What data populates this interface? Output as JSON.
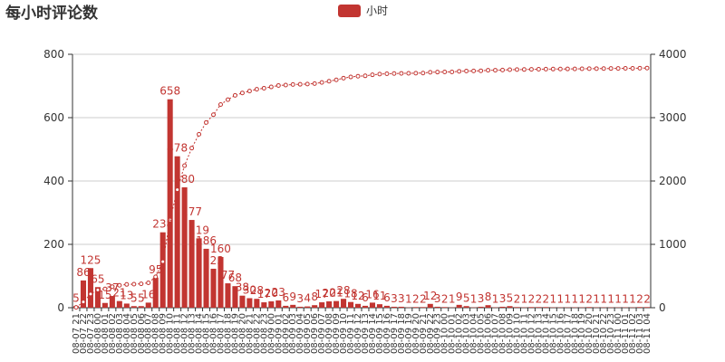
{
  "chart_data": {
    "type": "bar",
    "title": "每小时评论数",
    "legend": {
      "placement": "top-center",
      "entries": [
        "小时"
      ]
    },
    "colors": {
      "bar": "#c23531",
      "line": "#c23531",
      "axis": "#333333",
      "grid": "#cccccc"
    },
    "categories": [
      "08-07 21",
      "08-07 22",
      "08-07 23",
      "08-08 00",
      "08-08 01",
      "08-08 02",
      "08-08 03",
      "08-08 04",
      "08-08 05",
      "08-08 06",
      "08-08 07",
      "08-08 08",
      "08-08 09",
      "08-08 10",
      "08-08 11",
      "08-08 12",
      "08-08 13",
      "08-08 14",
      "08-08 15",
      "08-08 16",
      "08-08 17",
      "08-08 18",
      "08-08 19",
      "08-08 20",
      "08-08 21",
      "08-08 22",
      "08-08 23",
      "08-09 00",
      "08-09 01",
      "08-09 02",
      "08-09 03",
      "08-09 04",
      "08-09 05",
      "08-09 06",
      "08-09 07",
      "08-09 08",
      "08-09 09",
      "08-09 10",
      "08-09 11",
      "08-09 12",
      "08-09 13",
      "08-09 14",
      "08-09 15",
      "08-09 16",
      "08-09 17",
      "08-09 18",
      "08-09 19",
      "08-09 20",
      "08-09 21",
      "08-09 22",
      "08-09 23",
      "08-10 00",
      "08-10 01",
      "08-10 02",
      "08-10 03",
      "08-10 04",
      "08-10 05",
      "08-10 06",
      "08-10 07",
      "08-10 08",
      "08-10 09",
      "08-10 10",
      "08-10 11",
      "08-10 12",
      "08-10 13",
      "08-10 14",
      "08-10 15",
      "08-10 16",
      "08-10 17",
      "08-10 18",
      "08-10 19",
      "08-10 20",
      "08-10 21",
      "08-10 22",
      "08-10 23",
      "08-11 00",
      "08-11 01",
      "08-11 02",
      "08-11 03",
      "08-11 04"
    ],
    "series": [
      {
        "name": "小时",
        "type": "bar",
        "axis": "left",
        "values": [
          5,
          86,
          125,
          65,
          15,
          37,
          21,
          13,
          5,
          5,
          16,
          95,
          238,
          658,
          478,
          380,
          277,
          219,
          186,
          123,
          160,
          77,
          68,
          38,
          30,
          28,
          17,
          20,
          23,
          6,
          9,
          3,
          4,
          8,
          17,
          20,
          21,
          28,
          18,
          12,
          6,
          16,
          11,
          6,
          3,
          3,
          1,
          2,
          2,
          12,
          3,
          2,
          1,
          9,
          5,
          1,
          3,
          8,
          1,
          3,
          5,
          2,
          1,
          2,
          2,
          2,
          1,
          1,
          1,
          1,
          1,
          2,
          1,
          1,
          1,
          1,
          1,
          1,
          2,
          2
        ]
      },
      {
        "type": "line",
        "style": "dotted-with-hollow-circles",
        "axis": "right",
        "values": [
          5,
          91,
          216,
          281,
          296,
          333,
          354,
          367,
          372,
          377,
          393,
          488,
          726,
          1384,
          1862,
          2242,
          2519,
          2738,
          2924,
          3047,
          3207,
          3284,
          3352,
          3390,
          3420,
          3448,
          3465,
          3485,
          3508,
          3514,
          3523,
          3526,
          3530,
          3538,
          3555,
          3575,
          3596,
          3624,
          3642,
          3654,
          3660,
          3676,
          3687,
          3693,
          3696,
          3699,
          3700,
          3702,
          3704,
          3716,
          3719,
          3721,
          3722,
          3731,
          3736,
          3737,
          3740,
          3748,
          3749,
          3752,
          3757,
          3759,
          3760,
          3762,
          3764,
          3766,
          3767,
          3768,
          3769,
          3770,
          3771,
          3773,
          3774,
          3775,
          3776,
          3777,
          3778,
          3779,
          3781,
          3783
        ]
      }
    ],
    "bar_labels": [
      "5",
      "86",
      "125",
      "65",
      "15",
      "37",
      "21",
      "13",
      "5",
      "5",
      "16",
      "95",
      "238",
      "658",
      "478",
      "380",
      "277",
      "219",
      "186",
      "123",
      "160",
      "77",
      "68",
      "38",
      "30",
      "28",
      "17",
      "20",
      "23",
      "6",
      "9",
      "3",
      "4",
      "8",
      "17",
      "20",
      "21",
      "28",
      "18",
      "12",
      "6",
      "16",
      "11",
      "6",
      "3",
      "3",
      "1",
      "2",
      "2",
      "12",
      "3",
      "2",
      "1",
      "9",
      "5",
      "1",
      "3",
      "8",
      "1",
      "3",
      "5",
      "2",
      "1",
      "2",
      "2",
      "2",
      "1",
      "1",
      "1",
      "1",
      "1",
      "2",
      "1",
      "1",
      "1",
      "1",
      "1",
      "1",
      "2",
      "2"
    ],
    "y_left": {
      "min": 0,
      "max": 800,
      "ticks": [
        0,
        200,
        400,
        600,
        800
      ]
    },
    "y_right": {
      "min": 0,
      "max": 4000,
      "ticks": [
        0,
        1000,
        2000,
        3000,
        4000
      ]
    },
    "grid": true
  }
}
